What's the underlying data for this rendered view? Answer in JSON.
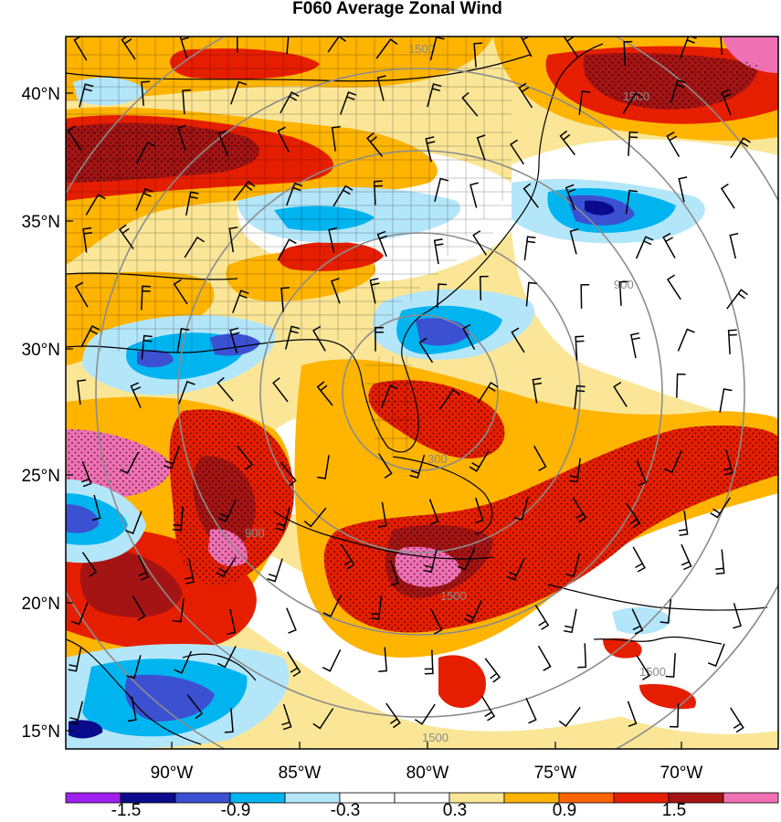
{
  "title": "F060 Average Zonal Wind",
  "map": {
    "y_ticks": [
      "40°N",
      "35°N",
      "30°N",
      "25°N",
      "20°N",
      "15°N"
    ],
    "x_ticks": [
      "90°W",
      "85°W",
      "80°W",
      "75°W",
      "70°W"
    ],
    "range_ring_labels": [
      "300",
      "900",
      "900",
      "1500",
      "1500",
      "1500",
      "1500",
      "1500"
    ]
  },
  "colorbar": {
    "labels": [
      "-1.5",
      "-0.9",
      "-0.3",
      "0.3",
      "0.9",
      "1.5"
    ],
    "colors": [
      "#a020f0",
      "#0a0a8c",
      "#3c50d2",
      "#00b4f0",
      "#b4e6fa",
      "#ffffff",
      "#ffffff",
      "#fae696",
      "#ffb400",
      "#ff6400",
      "#e61e00",
      "#a51414",
      "#f070b4"
    ]
  },
  "colors": {
    "range_rings": "#8c8c8c",
    "boundaries": "#000000",
    "barbs": "#000000"
  }
}
